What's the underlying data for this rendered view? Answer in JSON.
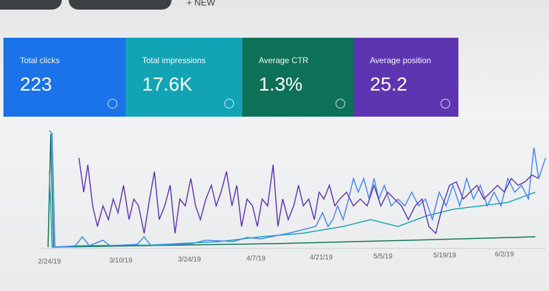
{
  "header": {
    "new_button": "NEW"
  },
  "cards": [
    {
      "label": "Total clicks",
      "value": "223"
    },
    {
      "label": "Total impressions",
      "value": "17.6K"
    },
    {
      "label": "Average CTR",
      "value": "1.3%"
    },
    {
      "label": "Average position",
      "value": "25.2"
    }
  ],
  "chart": {
    "dates": [
      "2/24/19",
      "3/10/19",
      "3/24/19",
      "4/7/19",
      "4/21/19",
      "5/5/19",
      "5/19/19",
      "6/2/19"
    ]
  }
}
